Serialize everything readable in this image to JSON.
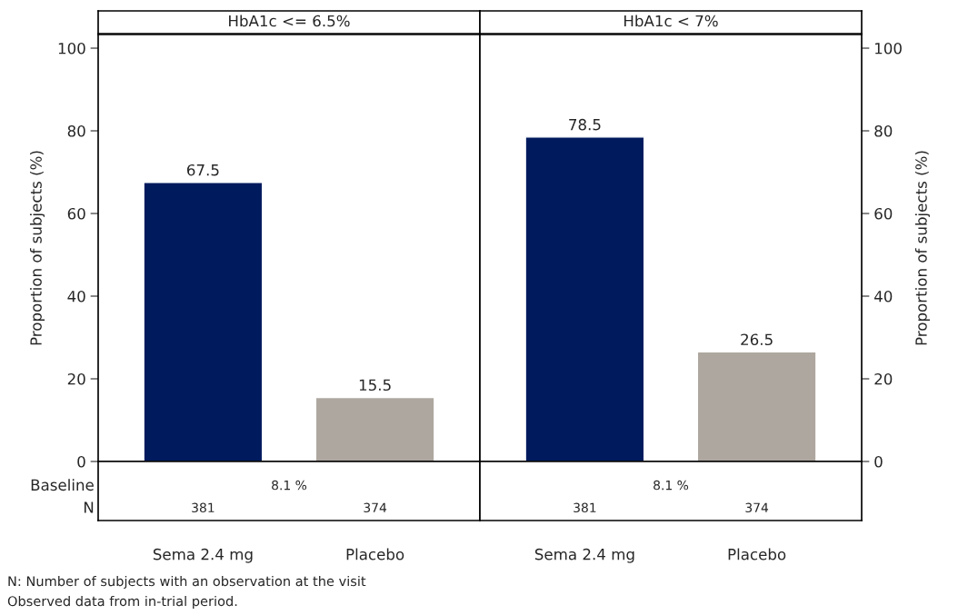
{
  "chart_data": [
    {
      "type": "bar",
      "title": "HbA1c <= 6.5%",
      "ylabel": "Proportion of subjects (%)",
      "categories": [
        "Sema 2.4 mg",
        "Placebo"
      ],
      "values": [
        67.5,
        15.5
      ],
      "colors": [
        "#001a5e",
        "#aea79f"
      ],
      "ylim": [
        0,
        103.3
      ],
      "yticks": [
        0,
        20,
        40,
        60,
        80,
        100
      ],
      "data_labels": true,
      "grid": false,
      "legend": false,
      "annotations": [
        "Baseline",
        "N",
        "8.1 %",
        "381",
        "374",
        "N: Number of subjects with an observation at the visit",
        "Observed data from in-trial period."
      ]
    },
    {
      "type": "bar",
      "title": "HbA1c < 7%",
      "ylabel": "Proportion of subjects (%)",
      "categories": [
        "Sema 2.4 mg",
        "Placebo"
      ],
      "values": [
        78.5,
        26.5
      ],
      "colors": [
        "#001a5e",
        "#aea79f"
      ],
      "ylim": [
        0,
        103.3
      ],
      "yticks": [
        0,
        20,
        40,
        60,
        80,
        100
      ],
      "data_labels": true,
      "grid": false,
      "legend": false,
      "annotations": [
        "8.1 %",
        "381",
        "374"
      ]
    }
  ]
}
